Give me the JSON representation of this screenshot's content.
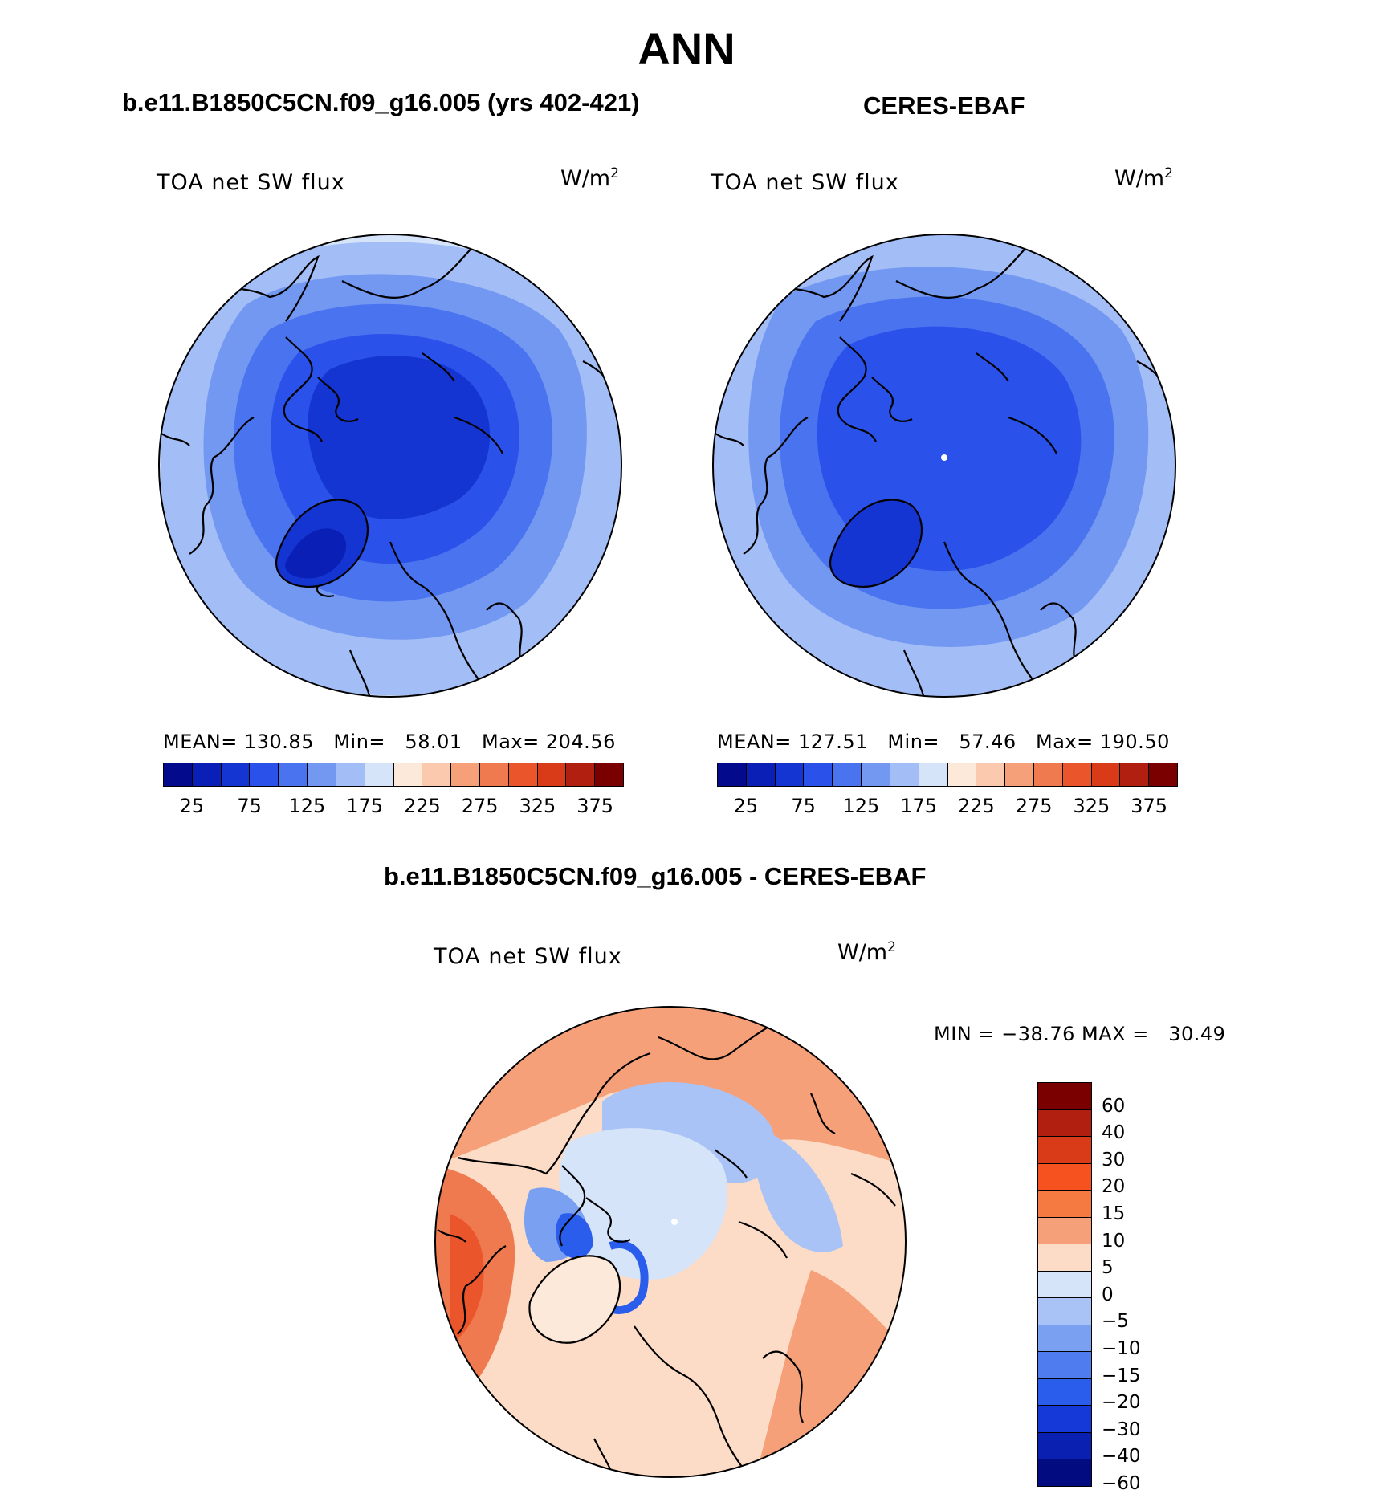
{
  "figure": {
    "title": "ANN"
  },
  "panels": {
    "model": {
      "header": "b.e11.B1850C5CN.f09_g16.005 (yrs 402-421)",
      "variable": "TOA net SW flux",
      "units_base": "W/m",
      "units_exp": "2",
      "stats": "MEAN= 130.85   Min=   58.01   Max= 204.56",
      "mean": 130.85,
      "min": 58.01,
      "max": 204.56
    },
    "obs": {
      "header": "CERES-EBAF",
      "variable": "TOA net SW flux",
      "units_base": "W/m",
      "units_exp": "2",
      "stats": "MEAN= 127.51   Min=   57.46   Max= 190.50",
      "mean": 127.51,
      "min": 57.46,
      "max": 190.5
    },
    "diff": {
      "header": "b.e11.B1850C5CN.f09_g16.005 - CERES-EBAF",
      "variable": "TOA net SW flux",
      "units_base": "W/m",
      "units_exp": "2",
      "stats": "MIN = −38.76 MAX =   30.49",
      "min": -38.76,
      "max": 30.49
    }
  },
  "colorbar_abs": {
    "tick_labels": [
      "25",
      "75",
      "125",
      "175",
      "225",
      "275",
      "325",
      "375"
    ],
    "colors": [
      "#030b8c",
      "#0a1fb5",
      "#1535d2",
      "#2a52ea",
      "#4a73ef",
      "#7398f2",
      "#a3bdf6",
      "#d6e4fa",
      "#fde9d9",
      "#fbc9ad",
      "#f6a07a",
      "#f07a4f",
      "#eb552b",
      "#d93a18",
      "#b11f10",
      "#7a0000"
    ]
  },
  "colorbar_diff": {
    "tick_labels": [
      "60",
      "40",
      "30",
      "20",
      "15",
      "10",
      "5",
      "0",
      "−5",
      "−10",
      "−15",
      "−20",
      "−30",
      "−40",
      "−60"
    ],
    "colors": [
      "#7a0000",
      "#b11f10",
      "#d93a18",
      "#f5521f",
      "#f57a42",
      "#f6a07a",
      "#fcdcc6",
      "#d6e4fa",
      "#a9c3f6",
      "#7aa0f2",
      "#4f7df0",
      "#2b5ded",
      "#1538d8",
      "#0a20b0",
      "#030b80"
    ]
  },
  "colors": {
    "map_land_outline": "#000000",
    "abs_deep": "#1535d2",
    "abs_mid": "#4a73ef",
    "abs_light": "#a3bdf6",
    "abs_pale": "#d6e4fa",
    "diff_warm": "#f6a07a",
    "diff_warm2": "#fcdcc6",
    "diff_hot": "#f07a4f",
    "diff_cool": "#d6e4fa",
    "diff_cool2": "#7aa0f2",
    "diff_deep": "#2b5ded"
  }
}
